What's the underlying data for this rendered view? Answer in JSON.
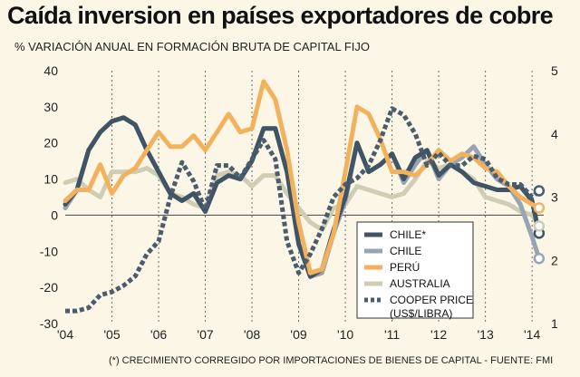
{
  "title": "Caída inversion en países exportadores de cobre",
  "subtitle": "% VARIACIÓN ANUAL EN FORMACIÓN BRUTA DE CAPITAL FIJO",
  "footnote": "(*) CRECIMIENTO CORREGIDO POR IMPORTACIONES DE BIENES DE CAPITAL - FUENTE: FMI",
  "chart_data": {
    "type": "line",
    "title": "Caída inversion en países exportadores de cobre",
    "x_tick_labels": [
      "'04",
      "'05",
      "'06",
      "'07",
      "'08",
      "'09",
      "'10",
      "'11",
      "'12",
      "'13",
      "'14"
    ],
    "x_range": [
      2004.0,
      2014.25
    ],
    "y_left": {
      "min": -30,
      "max": 40,
      "ticks": [
        40,
        30,
        20,
        10,
        0,
        -10,
        -20,
        -30
      ]
    },
    "y_right": {
      "min": 1,
      "max": 5,
      "ticks": [
        5,
        4,
        3,
        2,
        1
      ],
      "label": "US$/libra"
    },
    "legend_position": "bottom-right",
    "series": [
      {
        "name": "CHILE*",
        "color": "#3f5566",
        "axis": "left",
        "style": "solid",
        "points": [
          [
            2004.0,
            3
          ],
          [
            2004.25,
            7
          ],
          [
            2004.5,
            18
          ],
          [
            2004.75,
            23
          ],
          [
            2005.0,
            26
          ],
          [
            2005.25,
            27
          ],
          [
            2005.5,
            25
          ],
          [
            2005.75,
            18
          ],
          [
            2006.0,
            12
          ],
          [
            2006.25,
            6
          ],
          [
            2006.5,
            4
          ],
          [
            2006.75,
            6
          ],
          [
            2007.0,
            1
          ],
          [
            2007.25,
            9
          ],
          [
            2007.5,
            11
          ],
          [
            2007.75,
            10
          ],
          [
            2008.0,
            15
          ],
          [
            2008.25,
            24
          ],
          [
            2008.5,
            24
          ],
          [
            2008.75,
            12
          ],
          [
            2009.0,
            -8
          ],
          [
            2009.25,
            -17
          ],
          [
            2009.5,
            -15
          ],
          [
            2009.75,
            -4
          ],
          [
            2010.0,
            5
          ],
          [
            2010.25,
            20
          ],
          [
            2010.5,
            12
          ],
          [
            2010.75,
            14
          ],
          [
            2011.0,
            17
          ],
          [
            2011.25,
            10
          ],
          [
            2011.5,
            16
          ],
          [
            2011.75,
            18
          ],
          [
            2012.0,
            11
          ],
          [
            2012.25,
            14
          ],
          [
            2012.5,
            12
          ],
          [
            2012.75,
            9
          ],
          [
            2013.0,
            8
          ],
          [
            2013.25,
            7
          ],
          [
            2013.5,
            7
          ],
          [
            2013.75,
            8
          ],
          [
            2014.0,
            4
          ],
          [
            2014.15,
            -5
          ]
        ]
      },
      {
        "name": "CHILE",
        "color": "#98a3b4",
        "axis": "left",
        "style": "solid",
        "points": [
          [
            2004.0,
            2
          ],
          [
            2004.25,
            7
          ],
          [
            2004.5,
            18
          ],
          [
            2004.75,
            23
          ],
          [
            2005.0,
            26
          ],
          [
            2005.25,
            27
          ],
          [
            2005.5,
            25
          ],
          [
            2005.75,
            18
          ],
          [
            2006.0,
            12
          ],
          [
            2006.25,
            6
          ],
          [
            2006.5,
            4
          ],
          [
            2006.75,
            6
          ],
          [
            2007.0,
            1
          ],
          [
            2007.25,
            9
          ],
          [
            2007.5,
            11
          ],
          [
            2007.75,
            10
          ],
          [
            2008.0,
            15
          ],
          [
            2008.25,
            24
          ],
          [
            2008.5,
            24
          ],
          [
            2008.75,
            12
          ],
          [
            2009.0,
            -8
          ],
          [
            2009.25,
            -17
          ],
          [
            2009.5,
            -16
          ],
          [
            2009.75,
            -5
          ],
          [
            2010.0,
            4
          ],
          [
            2010.25,
            20
          ],
          [
            2010.5,
            12
          ],
          [
            2010.75,
            14
          ],
          [
            2011.0,
            17
          ],
          [
            2011.25,
            9
          ],
          [
            2011.5,
            14
          ],
          [
            2011.75,
            18
          ],
          [
            2012.0,
            10
          ],
          [
            2012.25,
            14
          ],
          [
            2012.5,
            16
          ],
          [
            2012.75,
            19
          ],
          [
            2013.0,
            14
          ],
          [
            2013.25,
            10
          ],
          [
            2013.5,
            8
          ],
          [
            2013.75,
            3
          ],
          [
            2014.0,
            -6
          ],
          [
            2014.15,
            -12
          ]
        ]
      },
      {
        "name": "PERÚ",
        "color": "#f2b25d",
        "axis": "left",
        "style": "solid",
        "points": [
          [
            2004.0,
            4
          ],
          [
            2004.25,
            7
          ],
          [
            2004.5,
            7
          ],
          [
            2004.75,
            14
          ],
          [
            2005.0,
            6
          ],
          [
            2005.25,
            11
          ],
          [
            2005.5,
            13
          ],
          [
            2005.75,
            18
          ],
          [
            2006.0,
            23
          ],
          [
            2006.25,
            19
          ],
          [
            2006.5,
            19
          ],
          [
            2006.75,
            22
          ],
          [
            2007.0,
            18
          ],
          [
            2007.25,
            23
          ],
          [
            2007.5,
            28
          ],
          [
            2007.75,
            23
          ],
          [
            2008.0,
            24
          ],
          [
            2008.25,
            37
          ],
          [
            2008.5,
            32
          ],
          [
            2008.75,
            18
          ],
          [
            2009.0,
            -2
          ],
          [
            2009.25,
            -16
          ],
          [
            2009.5,
            -15
          ],
          [
            2009.75,
            -5
          ],
          [
            2010.0,
            12
          ],
          [
            2010.25,
            30
          ],
          [
            2010.5,
            28
          ],
          [
            2010.75,
            21
          ],
          [
            2011.0,
            12
          ],
          [
            2011.25,
            12
          ],
          [
            2011.5,
            11
          ],
          [
            2011.75,
            14
          ],
          [
            2012.0,
            18
          ],
          [
            2012.25,
            15
          ],
          [
            2012.5,
            17
          ],
          [
            2012.75,
            16
          ],
          [
            2013.0,
            13
          ],
          [
            2013.25,
            12
          ],
          [
            2013.5,
            8
          ],
          [
            2013.75,
            5
          ],
          [
            2014.0,
            3
          ],
          [
            2014.15,
            2
          ]
        ]
      },
      {
        "name": "AUSTRALIA",
        "color": "#cfceb4",
        "axis": "left",
        "style": "solid",
        "points": [
          [
            2004.0,
            9
          ],
          [
            2004.25,
            10
          ],
          [
            2004.5,
            7
          ],
          [
            2004.75,
            5
          ],
          [
            2005.0,
            12
          ],
          [
            2005.25,
            12
          ],
          [
            2005.5,
            12
          ],
          [
            2005.75,
            13
          ],
          [
            2006.0,
            11
          ],
          [
            2006.25,
            6
          ],
          [
            2006.5,
            5
          ],
          [
            2006.75,
            3
          ],
          [
            2007.0,
            2
          ],
          [
            2007.25,
            11
          ],
          [
            2007.5,
            12
          ],
          [
            2007.75,
            11
          ],
          [
            2008.0,
            8
          ],
          [
            2008.25,
            11
          ],
          [
            2008.5,
            11
          ],
          [
            2008.75,
            6
          ],
          [
            2009.0,
            2
          ],
          [
            2009.25,
            -2
          ],
          [
            2009.5,
            -4
          ],
          [
            2009.75,
            2
          ],
          [
            2010.0,
            3
          ],
          [
            2010.25,
            8
          ],
          [
            2010.5,
            7
          ],
          [
            2010.75,
            6
          ],
          [
            2011.0,
            5
          ],
          [
            2011.25,
            6
          ],
          [
            2011.5,
            10
          ],
          [
            2011.75,
            15
          ],
          [
            2012.0,
            13
          ],
          [
            2012.25,
            14
          ],
          [
            2012.5,
            12
          ],
          [
            2012.75,
            10
          ],
          [
            2013.0,
            5
          ],
          [
            2013.25,
            4
          ],
          [
            2013.5,
            3
          ],
          [
            2013.75,
            1
          ],
          [
            2014.0,
            0
          ],
          [
            2014.15,
            -3
          ]
        ]
      },
      {
        "name": "COOPER PRICE (US$/LIBRA)",
        "color": "#4a5c6e",
        "axis": "right",
        "style": "dotted",
        "points": [
          [
            2004.0,
            1.2
          ],
          [
            2004.25,
            1.2
          ],
          [
            2004.5,
            1.25
          ],
          [
            2004.75,
            1.45
          ],
          [
            2005.0,
            1.5
          ],
          [
            2005.25,
            1.6
          ],
          [
            2005.5,
            1.75
          ],
          [
            2005.75,
            2.1
          ],
          [
            2006.0,
            2.3
          ],
          [
            2006.25,
            3.0
          ],
          [
            2006.5,
            3.55
          ],
          [
            2006.75,
            3.25
          ],
          [
            2007.0,
            2.8
          ],
          [
            2007.25,
            3.5
          ],
          [
            2007.5,
            3.5
          ],
          [
            2007.75,
            3.3
          ],
          [
            2008.0,
            3.6
          ],
          [
            2008.25,
            3.9
          ],
          [
            2008.5,
            3.6
          ],
          [
            2008.75,
            2.3
          ],
          [
            2009.0,
            1.8
          ],
          [
            2009.25,
            2.1
          ],
          [
            2009.5,
            2.5
          ],
          [
            2009.75,
            3.0
          ],
          [
            2010.0,
            3.2
          ],
          [
            2010.25,
            3.3
          ],
          [
            2010.5,
            3.5
          ],
          [
            2010.75,
            3.9
          ],
          [
            2011.0,
            4.4
          ],
          [
            2011.25,
            4.3
          ],
          [
            2011.5,
            4.0
          ],
          [
            2011.75,
            3.5
          ],
          [
            2012.0,
            3.7
          ],
          [
            2012.25,
            3.5
          ],
          [
            2012.5,
            3.5
          ],
          [
            2012.75,
            3.65
          ],
          [
            2013.0,
            3.6
          ],
          [
            2013.25,
            3.3
          ],
          [
            2013.5,
            3.2
          ],
          [
            2013.75,
            3.2
          ],
          [
            2014.0,
            3.0
          ],
          [
            2014.15,
            3.1
          ]
        ]
      }
    ],
    "end_markers": [
      {
        "series": "COOPER PRICE (US$/LIBRA)",
        "x": 2014.15,
        "y": 3.1,
        "axis": "right"
      },
      {
        "series": "PERÚ",
        "x": 2014.15,
        "y": 2,
        "axis": "left"
      },
      {
        "series": "CHILE*",
        "x": 2014.15,
        "y": -5,
        "axis": "left"
      },
      {
        "series": "CHILE",
        "x": 2014.15,
        "y": -12,
        "axis": "left"
      },
      {
        "series": "AUSTRALIA",
        "x": 2014.15,
        "y": -3,
        "axis": "left"
      }
    ]
  }
}
